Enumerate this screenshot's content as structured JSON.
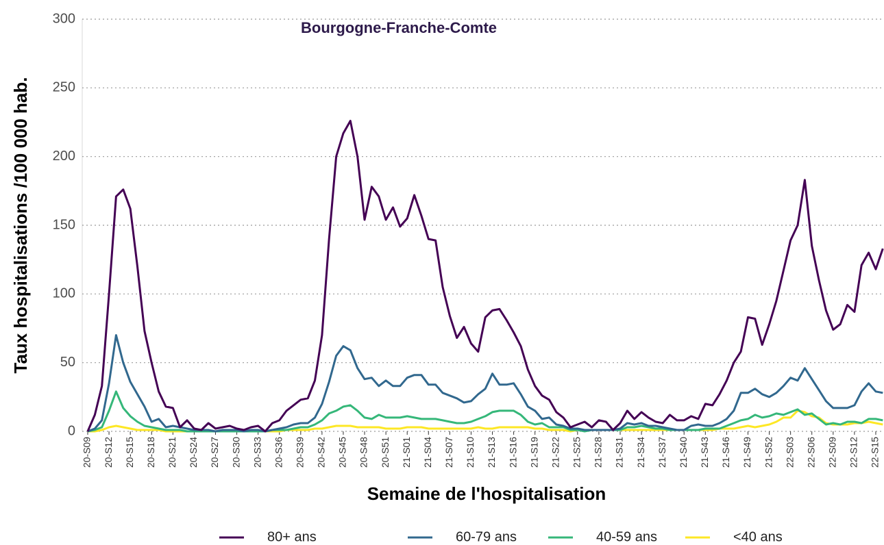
{
  "chart_data": {
    "type": "line",
    "title": "Bourgogne-Franche-Comte",
    "x_label": "Semaine de l'hospitalisation",
    "y_label": "Taux hospitalisations /100 000 hab.",
    "categories": [
      "20-S09",
      null,
      null,
      "20-S12",
      null,
      null,
      "20-S15",
      null,
      null,
      "20-S18",
      null,
      null,
      "20-S21",
      null,
      null,
      "20-S24",
      null,
      null,
      "20-S27",
      null,
      null,
      "20-S30",
      null,
      null,
      "20-S33",
      null,
      null,
      "20-S36",
      null,
      null,
      "20-S39",
      null,
      null,
      "20-S42",
      null,
      null,
      "20-S45",
      null,
      null,
      "20-S48",
      null,
      null,
      "20-S51",
      null,
      null,
      "21-S01",
      null,
      null,
      "21-S04",
      null,
      null,
      "21-S07",
      null,
      null,
      "21-S10",
      null,
      null,
      "21-S13",
      null,
      null,
      "21-S16",
      null,
      null,
      "21-S19",
      null,
      null,
      "21-S22",
      null,
      null,
      "21-S25",
      null,
      null,
      "21-S28",
      null,
      null,
      "21-S31",
      null,
      null,
      "21-S34",
      null,
      null,
      "21-S37",
      null,
      null,
      "21-S40",
      null,
      null,
      "21-S43",
      null,
      null,
      "21-S46",
      null,
      null,
      "21-S49",
      null,
      null,
      "21-S52",
      null,
      null,
      "22-S03",
      null,
      null,
      "22-S06",
      null,
      null,
      "22-S09",
      null,
      null,
      "22-S12",
      null,
      null,
      "22-S15",
      null
    ],
    "series": [
      {
        "name": "80+ ans",
        "color": "#440154",
        "values": [
          0,
          12,
          33,
          100,
          171,
          176,
          162,
          120,
          73,
          50,
          29,
          18,
          17,
          3,
          8,
          2,
          1,
          6,
          2,
          3,
          4,
          2,
          1,
          3,
          4,
          0,
          6,
          8,
          15,
          19,
          23,
          24,
          37,
          70,
          140,
          200,
          217,
          226,
          200,
          154,
          178,
          171,
          154,
          163,
          149,
          155,
          172,
          157,
          140,
          139,
          105,
          84,
          68,
          76,
          64,
          58,
          83,
          88,
          89,
          81,
          72,
          62,
          45,
          33,
          26,
          23,
          14,
          10,
          3,
          5,
          7,
          3,
          8,
          7,
          1,
          6,
          15,
          9,
          14,
          10,
          7,
          6,
          12,
          8,
          8,
          11,
          9,
          20,
          19,
          27,
          37,
          50,
          58,
          83,
          82,
          63,
          78,
          95,
          117,
          139,
          150,
          183,
          135,
          110,
          88,
          74,
          78,
          92,
          87,
          121,
          130,
          118,
          133
        ]
      },
      {
        "name": "60-79 ans",
        "color": "#31688e",
        "values": [
          0,
          2,
          8,
          35,
          70,
          50,
          36,
          27,
          18,
          7,
          9,
          3,
          4,
          3,
          2,
          1,
          1,
          1,
          0,
          1,
          1,
          1,
          0,
          1,
          1,
          0,
          1,
          2,
          3,
          5,
          6,
          6,
          10,
          20,
          36,
          55,
          62,
          59,
          46,
          38,
          39,
          33,
          37,
          33,
          33,
          39,
          41,
          41,
          34,
          34,
          28,
          26,
          24,
          21,
          22,
          27,
          31,
          42,
          34,
          34,
          35,
          27,
          18,
          15,
          9,
          10,
          5,
          4,
          2,
          2,
          1,
          1,
          1,
          1,
          1,
          2,
          6,
          5,
          6,
          4,
          4,
          3,
          2,
          1,
          1,
          4,
          5,
          4,
          4,
          6,
          9,
          15,
          28,
          28,
          31,
          27,
          25,
          28,
          33,
          39,
          37,
          46,
          38,
          30,
          22,
          17,
          17,
          17,
          19,
          29,
          35,
          29,
          28
        ]
      },
      {
        "name": "40-59 ans",
        "color": "#35b779",
        "values": [
          0,
          1,
          3,
          15,
          29,
          17,
          11,
          7,
          4,
          3,
          2,
          1,
          1,
          1,
          0,
          0,
          0,
          0,
          0,
          0,
          0,
          0,
          0,
          0,
          0,
          0,
          1,
          1,
          1,
          2,
          3,
          3,
          5,
          8,
          13,
          15,
          18,
          19,
          15,
          10,
          9,
          12,
          10,
          10,
          10,
          11,
          10,
          9,
          9,
          9,
          8,
          7,
          6,
          6,
          7,
          9,
          11,
          14,
          15,
          15,
          15,
          12,
          7,
          5,
          6,
          3,
          3,
          3,
          1,
          1,
          0,
          1,
          1,
          1,
          1,
          1,
          3,
          3,
          4,
          3,
          2,
          2,
          1,
          1,
          1,
          1,
          1,
          2,
          2,
          2,
          4,
          6,
          8,
          9,
          12,
          10,
          11,
          13,
          12,
          14,
          16,
          12,
          13,
          9,
          5,
          6,
          5,
          7,
          7,
          6,
          9,
          9,
          8
        ]
      },
      {
        "name": "<40 ans",
        "color": "#fde725",
        "values": [
          0,
          0,
          1,
          3,
          4,
          3,
          2,
          1,
          1,
          1,
          1,
          0,
          0,
          0,
          0,
          0,
          0,
          0,
          0,
          0,
          0,
          0,
          0,
          0,
          0,
          0,
          0,
          0,
          1,
          1,
          1,
          1,
          2,
          2,
          3,
          4,
          4,
          4,
          3,
          3,
          3,
          3,
          2,
          2,
          2,
          3,
          3,
          3,
          2,
          2,
          2,
          2,
          2,
          2,
          2,
          3,
          2,
          2,
          3,
          3,
          3,
          3,
          3,
          2,
          2,
          1,
          1,
          1,
          0,
          1,
          1,
          1,
          1,
          1,
          1,
          1,
          1,
          1,
          1,
          1,
          1,
          1,
          1,
          1,
          1,
          1,
          1,
          1,
          1,
          2,
          2,
          2,
          3,
          4,
          3,
          4,
          5,
          7,
          10,
          10,
          15,
          14,
          11,
          10,
          6,
          5,
          5,
          5,
          6,
          6,
          7,
          6,
          5
        ]
      }
    ],
    "ylim": [
      0,
      300
    ],
    "yticks": [
      0,
      50,
      100,
      150,
      200,
      250,
      300
    ],
    "grid": true,
    "legend": "bottom"
  }
}
